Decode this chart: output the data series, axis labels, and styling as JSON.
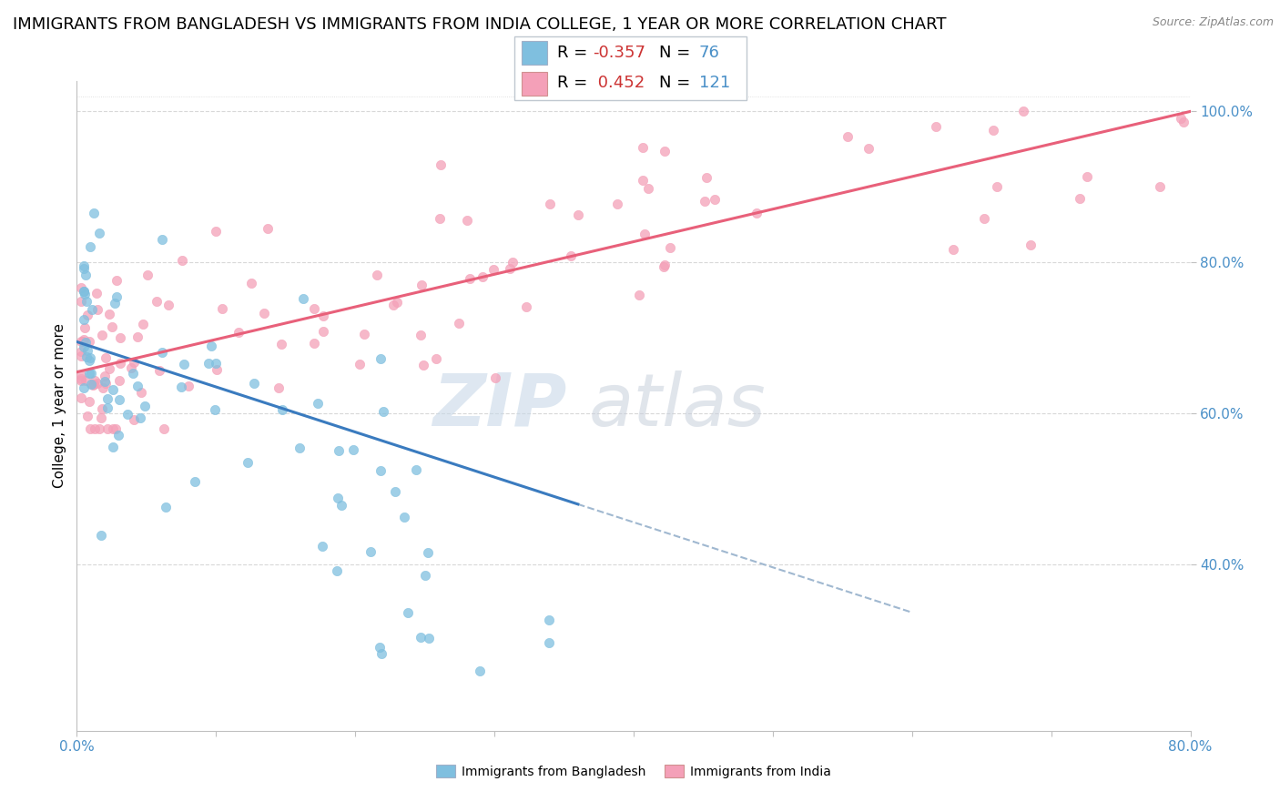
{
  "title": "IMMIGRANTS FROM BANGLADESH VS IMMIGRANTS FROM INDIA COLLEGE, 1 YEAR OR MORE CORRELATION CHART",
  "source": "Source: ZipAtlas.com",
  "ylabel": "College, 1 year or more",
  "xlim": [
    0.0,
    0.8
  ],
  "ylim": [
    0.18,
    1.04
  ],
  "xtick_positions": [
    0.0,
    0.1,
    0.2,
    0.3,
    0.4,
    0.5,
    0.6,
    0.7,
    0.8
  ],
  "xticklabels": [
    "0.0%",
    "",
    "",
    "",
    "",
    "",
    "",
    "",
    "80.0%"
  ],
  "ytick_positions": [
    0.4,
    0.6,
    0.8,
    1.0
  ],
  "yticklabels": [
    "40.0%",
    "60.0%",
    "80.0%",
    "100.0%"
  ],
  "R_bangladesh": -0.357,
  "N_bangladesh": 76,
  "R_india": 0.452,
  "N_india": 121,
  "blue_color": "#7fbfdf",
  "pink_color": "#f4a0b8",
  "blue_line_color": "#3a7bbf",
  "pink_line_color": "#e8607a",
  "background_color": "white",
  "grid_color": "#d8d8d8",
  "title_fontsize": 13,
  "axis_label_fontsize": 11,
  "tick_fontsize": 11,
  "tick_color": "#4a90c8",
  "bang_line_x0": 0.0,
  "bang_line_y0": 0.695,
  "bang_line_x1": 0.36,
  "bang_line_y1": 0.48,
  "india_line_x0": 0.0,
  "india_line_y0": 0.655,
  "india_line_x1": 0.8,
  "india_line_y1": 1.0
}
